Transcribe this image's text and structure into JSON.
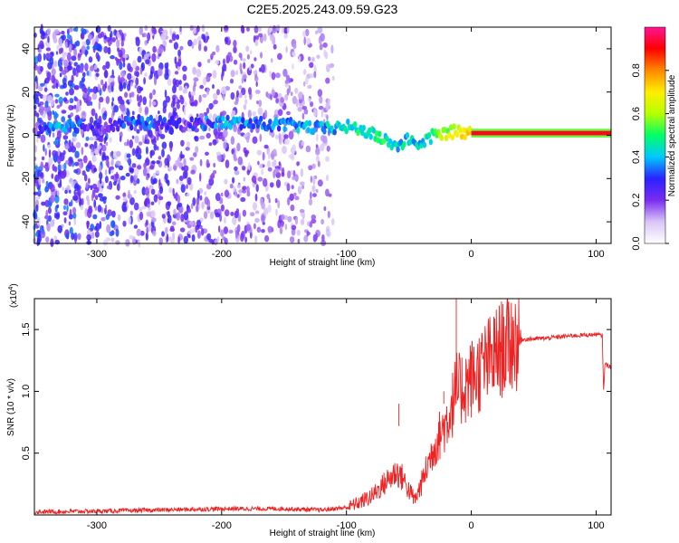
{
  "title": "C2E5.2025.243.09.59.G23",
  "chart_data": [
    {
      "type": "heatmap",
      "name": "spectrogram",
      "xlabel": "Height of straight line (km)",
      "ylabel": "Frequency (Hz)",
      "xlim": [
        -350,
        112
      ],
      "ylim": [
        -50,
        50
      ],
      "xticks": [
        -300,
        -200,
        -100,
        0,
        100
      ],
      "yticks": [
        -40,
        -20,
        0,
        20,
        40
      ],
      "ytick_labels": [
        "-40",
        "-20",
        "0",
        "20",
        "40"
      ],
      "xtick_labels": [
        "-300",
        "-200",
        "-100",
        "0",
        "100"
      ],
      "colorbar": {
        "label": "Normalized spectral amplitude",
        "range": [
          0,
          1
        ],
        "ticks": [
          0.0,
          0.2,
          0.4,
          0.6,
          0.8
        ],
        "tick_labels": [
          "0.0",
          "0.2",
          "0.4",
          "0.6",
          "0.8"
        ],
        "colors": [
          "#ffffff",
          "#d9c6f5",
          "#7a2cf0",
          "#2a22ff",
          "#00c8ff",
          "#00ff66",
          "#b6ff00",
          "#ffee00",
          "#ff8800",
          "#ff0000",
          "#ff1493"
        ]
      },
      "ridge": [
        {
          "x": -350,
          "f": 2.5,
          "a": 0.25
        },
        {
          "x": -330,
          "f": 5,
          "a": 0.45
        },
        {
          "x": -300,
          "f": 4,
          "a": 0.25
        },
        {
          "x": -265,
          "f": 6,
          "a": 0.4
        },
        {
          "x": -230,
          "f": 5,
          "a": 0.25
        },
        {
          "x": -200,
          "f": 6,
          "a": 0.45
        },
        {
          "x": -160,
          "f": 5,
          "a": 0.4
        },
        {
          "x": -140,
          "f": 4.5,
          "a": 0.45
        },
        {
          "x": -120,
          "f": 3,
          "a": 0.45
        },
        {
          "x": -100,
          "f": 4,
          "a": 0.5
        },
        {
          "x": -85,
          "f": 2,
          "a": 0.55
        },
        {
          "x": -70,
          "f": -2,
          "a": 0.55
        },
        {
          "x": -60,
          "f": -5,
          "a": 0.5
        },
        {
          "x": -50,
          "f": -2,
          "a": 0.5
        },
        {
          "x": -40,
          "f": -4,
          "a": 0.5
        },
        {
          "x": -30,
          "f": 0,
          "a": 0.6
        },
        {
          "x": -20,
          "f": 1,
          "a": 0.7
        },
        {
          "x": -10,
          "f": 2,
          "a": 0.8
        },
        {
          "x": 0,
          "f": 1,
          "a": 0.85
        },
        {
          "x": 112,
          "f": 1,
          "a": 0.95
        }
      ]
    },
    {
      "type": "line",
      "name": "snr",
      "xlabel": "Height of straight line (km)",
      "ylabel": "SNR (10 * v/v)",
      "scale_label": "(x10",
      "scale_exponent": "4",
      "xlim": [
        -350,
        112
      ],
      "ylim": [
        0,
        1.75
      ],
      "xticks": [
        -300,
        -200,
        -100,
        0,
        100
      ],
      "xtick_labels": [
        "-300",
        "-200",
        "-100",
        "0",
        "100"
      ],
      "yticks": [
        0.5,
        1.0,
        1.5
      ],
      "ytick_labels": [
        "0.5",
        "1.0",
        "1.5"
      ],
      "color": "#ee2222",
      "points": [
        [
          -350,
          0.025
        ],
        [
          -300,
          0.03
        ],
        [
          -250,
          0.04
        ],
        [
          -200,
          0.05
        ],
        [
          -150,
          0.05
        ],
        [
          -120,
          0.04
        ],
        [
          -100,
          0.06
        ],
        [
          -90,
          0.1
        ],
        [
          -80,
          0.15
        ],
        [
          -70,
          0.25
        ],
        [
          -60,
          0.35
        ],
        [
          -55,
          0.3
        ],
        [
          -50,
          0.2
        ],
        [
          -45,
          0.12
        ],
        [
          -40,
          0.25
        ],
        [
          -35,
          0.4
        ],
        [
          -30,
          0.55
        ],
        [
          -25,
          0.65
        ],
        [
          -20,
          0.75
        ],
        [
          -15,
          0.9
        ],
        [
          -12,
          1.02
        ],
        [
          -10,
          1.0
        ],
        [
          -5,
          1.05
        ],
        [
          0,
          1.1
        ],
        [
          10,
          1.2
        ],
        [
          20,
          1.3
        ],
        [
          30,
          1.4
        ],
        [
          40,
          1.42
        ],
        [
          60,
          1.43
        ],
        [
          80,
          1.45
        ],
        [
          100,
          1.46
        ],
        [
          105,
          1.45
        ],
        [
          106,
          1.0
        ],
        [
          107,
          1.22
        ],
        [
          112,
          1.2
        ]
      ],
      "spikes": [
        [
          -12,
          1.75
        ],
        [
          -58,
          0.72
        ],
        [
          -22,
          1.0
        ]
      ]
    }
  ]
}
